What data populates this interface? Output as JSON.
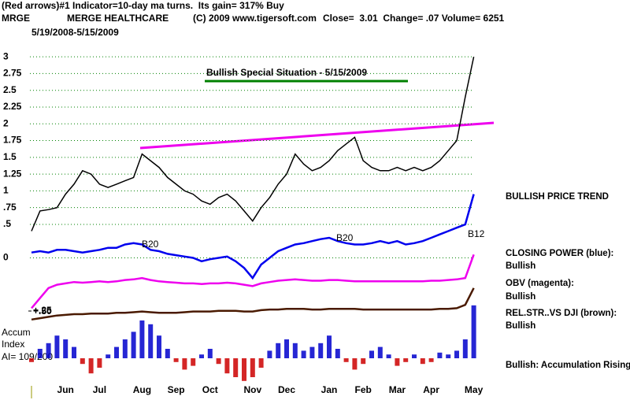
{
  "header": {
    "line1": "(Red arrows)#1 Indicator=10-day ma turns.  Its gain= 317% Buy",
    "symbol": "MRGE",
    "company": "MERGE HEALTHCARE",
    "copyright": "(C) 2009 www.tigersoft.com",
    "quote": "Close=  3.01  Change= .07 Volume= 6251",
    "date_range": "5/19/2008-5/15/2009"
  },
  "chart_data": [
    {
      "type": "line",
      "categories": [
        null,
        null,
        null,
        null,
        "Jun",
        null,
        null,
        null,
        "Jul",
        null,
        null,
        null,
        null,
        "Aug",
        null,
        null,
        null,
        "Sep",
        null,
        null,
        null,
        "Oct",
        null,
        null,
        null,
        null,
        "Nov",
        null,
        null,
        null,
        "Dec",
        null,
        null,
        null,
        null,
        "Jan",
        null,
        null,
        null,
        "Feb",
        null,
        null,
        null,
        "Mar",
        null,
        null,
        null,
        "Apr",
        null,
        null,
        null,
        null,
        "May"
      ],
      "ylim": [
        -1.85,
        3.26
      ],
      "yticks": [
        0,
        {
          "value": 0.5,
          "label": ".5"
        },
        {
          "value": 0.75,
          "label": ".75"
        },
        1,
        1.25,
        1.5,
        1.75,
        2,
        2.25,
        2.5,
        2.75,
        3
      ],
      "grid": true,
      "grid_color": "#008000",
      "series": [
        {
          "status": "BULLISH PRICE TREND",
          "color": "#000000",
          "values": [
            0.4,
            0.7,
            0.72,
            0.75,
            0.95,
            1.1,
            1.3,
            1.25,
            1.1,
            1.05,
            1.1,
            1.15,
            1.2,
            1.55,
            1.45,
            1.35,
            1.2,
            1.1,
            1.0,
            0.95,
            0.85,
            0.8,
            0.9,
            0.95,
            0.85,
            0.7,
            0.55,
            0.75,
            0.9,
            1.1,
            1.25,
            1.55,
            1.4,
            1.3,
            1.35,
            1.45,
            1.6,
            1.7,
            1.8,
            1.45,
            1.35,
            1.3,
            1.3,
            1.35,
            1.3,
            1.35,
            1.3,
            1.35,
            1.45,
            1.6,
            1.75,
            2.4,
            3.0
          ]
        },
        {
          "name": "CLOSING POWER (blue):",
          "status": "Bullish",
          "color": "#0000ee",
          "values": [
            0.08,
            0.1,
            0.08,
            0.12,
            0.12,
            0.1,
            0.08,
            0.1,
            0.12,
            0.15,
            0.15,
            0.2,
            0.22,
            0.2,
            0.12,
            0.1,
            0.06,
            0.04,
            0.02,
            0.0,
            -0.05,
            -0.02,
            0.0,
            0.02,
            -0.05,
            -0.15,
            -0.3,
            -0.1,
            0.0,
            0.1,
            0.15,
            0.2,
            0.22,
            0.25,
            0.28,
            0.3,
            0.25,
            0.22,
            0.2,
            0.2,
            0.22,
            0.25,
            0.22,
            0.25,
            0.2,
            0.22,
            0.25,
            0.3,
            0.35,
            0.4,
            0.45,
            0.5,
            0.95
          ]
        },
        {
          "name": "OBV (magenta):",
          "status": "Bullish",
          "color": "#ee00ee",
          "values": [
            -0.75,
            -0.6,
            -0.45,
            -0.4,
            -0.38,
            -0.36,
            -0.37,
            -0.36,
            -0.35,
            -0.36,
            -0.35,
            -0.33,
            -0.32,
            -0.3,
            -0.33,
            -0.35,
            -0.36,
            -0.37,
            -0.38,
            -0.38,
            -0.39,
            -0.38,
            -0.38,
            -0.37,
            -0.38,
            -0.4,
            -0.42,
            -0.38,
            -0.36,
            -0.34,
            -0.33,
            -0.32,
            -0.33,
            -0.34,
            -0.34,
            -0.33,
            -0.33,
            -0.34,
            -0.35,
            -0.35,
            -0.35,
            -0.35,
            -0.35,
            -0.35,
            -0.35,
            -0.35,
            -0.35,
            -0.34,
            -0.34,
            -0.33,
            -0.32,
            -0.3,
            0.05
          ]
        },
        {
          "name": "REL.STR..VS DJI (brown):",
          "status": "Bullish",
          "color": "#4a1a00",
          "values": [
            -0.92,
            -0.9,
            -0.88,
            -0.86,
            -0.85,
            -0.84,
            -0.84,
            -0.83,
            -0.83,
            -0.83,
            -0.82,
            -0.82,
            -0.81,
            -0.8,
            -0.81,
            -0.82,
            -0.82,
            -0.82,
            -0.81,
            -0.8,
            -0.8,
            -0.8,
            -0.79,
            -0.79,
            -0.79,
            -0.8,
            -0.8,
            -0.78,
            -0.77,
            -0.77,
            -0.76,
            -0.76,
            -0.76,
            -0.77,
            -0.77,
            -0.76,
            -0.76,
            -0.76,
            -0.76,
            -0.77,
            -0.77,
            -0.77,
            -0.77,
            -0.77,
            -0.77,
            -0.77,
            -0.77,
            -0.77,
            -0.76,
            -0.76,
            -0.75,
            -0.7,
            -0.45
          ]
        }
      ],
      "annotations": [
        "Bullish Special Situation - 5/15/2009",
        "B20",
        "B20",
        "B12"
      ]
    },
    {
      "type": "bar",
      "title": "Accum",
      "subtitle": "Index",
      "note": "AI= 109/200",
      "extra_label": "+.50",
      "ylim": [
        -0.25,
        0.3
      ],
      "yticks": [
        {
          "value": 0.25,
          "label": "+.25"
        },
        {
          "value": -0.25,
          "label": "-.25"
        }
      ],
      "positive_color": "#0000cc",
      "negative_color": "#cc0000",
      "status": "Bullish: Accumulation Rising",
      "values": [
        -0.02,
        0.05,
        0.08,
        0.12,
        0.1,
        0.06,
        -0.03,
        -0.08,
        -0.05,
        0.02,
        0.06,
        0.1,
        0.14,
        0.2,
        0.18,
        0.12,
        0.05,
        -0.02,
        -0.06,
        -0.04,
        0.02,
        0.05,
        -0.03,
        -0.08,
        -0.1,
        -0.12,
        -0.1,
        -0.05,
        0.04,
        0.08,
        0.1,
        0.08,
        0.04,
        0.06,
        0.08,
        0.12,
        0.05,
        -0.02,
        -0.06,
        -0.03,
        0.04,
        0.06,
        0.02,
        -0.04,
        -0.02,
        0.02,
        -0.03,
        -0.02,
        0.03,
        0.02,
        0.04,
        0.1,
        0.28
      ]
    }
  ]
}
